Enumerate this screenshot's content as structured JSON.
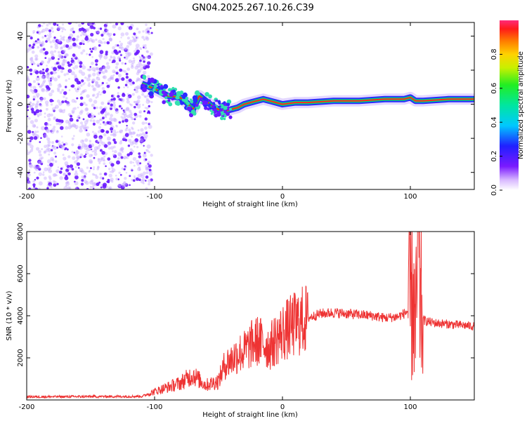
{
  "title": "GN04.2025.267.10.26.C39",
  "colors": {
    "snr_line": "#ee3333",
    "ridge_core": "#ff2a1a",
    "ridge_mid": "#00d27a",
    "ridge_edge": "#2b2bff",
    "scatter": "#6a1aff",
    "scatter_light": "#c6a8ff",
    "axis": "#000000"
  },
  "chart_data": [
    {
      "type": "heatmap",
      "name": "spectrogram",
      "title": "GN04.2025.267.10.26.C39",
      "xlabel": "Height of straight line (km)",
      "ylabel": "Frequency (Hz)",
      "xlim": [
        -200,
        150
      ],
      "ylim": [
        -50,
        48
      ],
      "xticks": [
        -200,
        -100,
        0,
        100
      ],
      "yticks": [
        -40,
        -20,
        0,
        20,
        40
      ],
      "colorbar": {
        "label": "Normalized spectral amplitude",
        "range": [
          0,
          1
        ],
        "ticks": [
          "0.0",
          "0.2",
          "0.4",
          "0.6",
          "0.8"
        ],
        "tick_values": [
          0,
          0.2,
          0.4,
          0.6,
          0.8
        ]
      },
      "noise_region_x": [
        -200,
        -108
      ],
      "ridge": {
        "x": [
          -110,
          -100,
          -90,
          -80,
          -75,
          -70,
          -65,
          -60,
          -55,
          -50,
          -45,
          -40,
          -35,
          -30,
          -25,
          -20,
          -15,
          -10,
          -5,
          0,
          10,
          20,
          40,
          60,
          80,
          95,
          100,
          104,
          110,
          130,
          150
        ],
        "frequency": [
          12,
          9,
          5,
          4,
          1,
          -3,
          5,
          2,
          -1,
          -3,
          -4,
          -3,
          -2,
          0,
          1,
          2,
          3,
          2,
          1,
          0,
          1,
          1,
          2,
          2,
          3,
          3,
          4,
          2,
          2,
          3,
          3
        ]
      }
    },
    {
      "type": "line",
      "name": "snr",
      "xlabel": "Height of straight line (km)",
      "ylabel": "SNR (10 * v/v)",
      "xlim": [
        -200,
        150
      ],
      "ylim": [
        0,
        8000
      ],
      "xticks": [
        -200,
        -100,
        0,
        100
      ],
      "yticks": [
        2000,
        4000,
        6000,
        8000
      ],
      "envelope": {
        "x": [
          -200,
          -150,
          -110,
          -100,
          -90,
          -80,
          -70,
          -60,
          -55,
          -50,
          -45,
          -40,
          -35,
          -30,
          -25,
          -20,
          -15,
          -10,
          -5,
          0,
          10,
          20,
          30,
          40,
          50,
          60,
          70,
          80,
          90,
          95,
          100,
          102,
          104,
          106,
          108,
          110,
          115,
          120,
          130,
          140,
          150
        ],
        "y": [
          150,
          160,
          170,
          400,
          600,
          800,
          1200,
          700,
          800,
          900,
          1700,
          1900,
          2200,
          2300,
          2600,
          2800,
          2700,
          2500,
          2900,
          3200,
          3600,
          3900,
          4100,
          4150,
          4100,
          4050,
          4000,
          3900,
          3950,
          4100,
          4300,
          5500,
          3000,
          7000,
          4500,
          3800,
          3700,
          3650,
          3600,
          3550,
          3500
        ]
      }
    }
  ]
}
